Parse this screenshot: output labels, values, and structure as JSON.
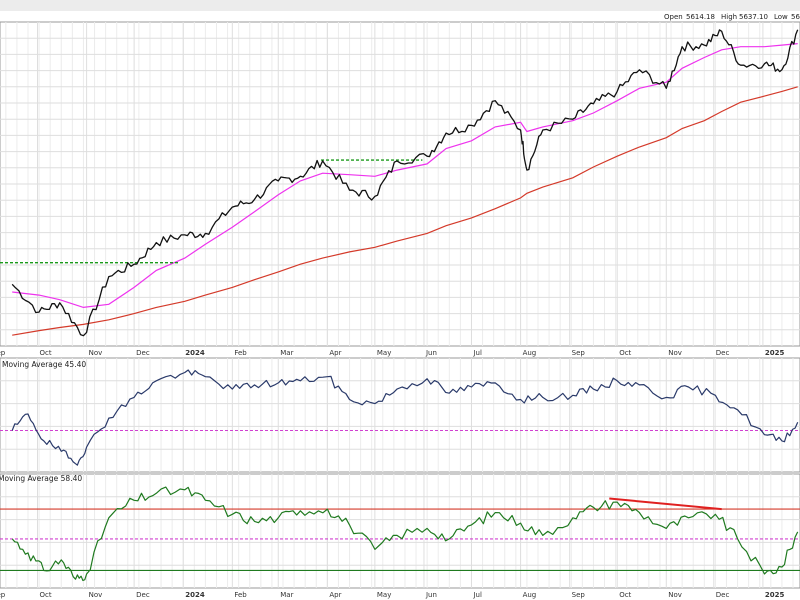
{
  "header": {
    "open_label": "Open",
    "open_value": "5614.18",
    "high_label": "High",
    "high_value": "5637.10",
    "low_label": "Low",
    "low_value": "56"
  },
  "colors": {
    "price": "#111111",
    "ma50": "#ee33ee",
    "ma200": "#d43a2a",
    "resistance": "#1a9a1a",
    "oscillator1": "#2a3a6a",
    "oscillator2": "#1f7a1f",
    "threshold_dash": "#d040d0",
    "divergence": "#e02020",
    "panel_border": "#999999",
    "grid": "#dedede"
  },
  "x_axis": {
    "labels": [
      "Sep",
      "Oct",
      "Nov",
      "Dec",
      "2024",
      "Feb",
      "Mar",
      "Apr",
      "May",
      "Jun",
      "Jul",
      "Aug",
      "Sep",
      "Oct",
      "Nov",
      "Dec",
      "2025"
    ],
    "bold": [
      "2024",
      "2025"
    ]
  },
  "panels": {
    "oscillator1_title": "Moving Average 45.40",
    "oscillator2_title": "Moving Average 58.40"
  },
  "chart_data": [
    {
      "type": "line",
      "name": "price",
      "x": [
        "2023-09-15",
        "2023-10-02",
        "2023-10-15",
        "2023-10-30",
        "2023-11-15",
        "2023-12-01",
        "2023-12-15",
        "2024-01-02",
        "2024-01-15",
        "2024-02-01",
        "2024-02-15",
        "2024-03-01",
        "2024-03-15",
        "2024-03-29",
        "2024-04-15",
        "2024-05-01",
        "2024-05-15",
        "2024-06-03",
        "2024-06-15",
        "2024-07-01",
        "2024-07-16",
        "2024-08-01",
        "2024-08-05",
        "2024-08-15",
        "2024-09-03",
        "2024-09-16",
        "2024-10-01",
        "2024-10-15",
        "2024-11-01",
        "2024-11-11",
        "2024-11-25",
        "2024-12-06",
        "2024-12-18",
        "2025-01-02",
        "2025-01-13",
        "2025-01-23"
      ],
      "series": [
        {
          "values": [
            4450,
            4270,
            4330,
            4117,
            4500,
            4580,
            4720,
            4770,
            4780,
            4950,
            5000,
            5120,
            5150,
            5250,
            5060,
            5020,
            5250,
            5280,
            5430,
            5480,
            5640,
            5450,
            5190,
            5450,
            5520,
            5620,
            5700,
            5840,
            5720,
            5990,
            6000,
            6090,
            5870,
            5880,
            5840,
            6100
          ]
        },
        {
          "name": "",
          "values": [
            4400,
            4380,
            4350,
            4300,
            4320,
            4430,
            4540,
            4620,
            4710,
            4820,
            4920,
            5030,
            5120,
            5170,
            5160,
            5150,
            5190,
            5230,
            5330,
            5380,
            5470,
            5500,
            5440,
            5470,
            5510,
            5560,
            5640,
            5720,
            5760,
            5850,
            5920,
            5970,
            5990,
            5990,
            6000,
            6010
          ]
        },
        {
          "name": "",
          "values": [
            4120,
            4150,
            4170,
            4190,
            4220,
            4260,
            4300,
            4340,
            4380,
            4430,
            4480,
            4530,
            4580,
            4620,
            4660,
            4690,
            4730,
            4780,
            4830,
            4880,
            4940,
            5010,
            5040,
            5080,
            5140,
            5210,
            5280,
            5340,
            5400,
            5460,
            5510,
            5570,
            5630,
            5670,
            5700,
            5730
          ]
        }
      ],
      "resistance_levels": [
        {
          "value": 4590,
          "from": "2023-09-01",
          "to": "2023-12-29"
        },
        {
          "value": 5255,
          "from": "2024-03-28",
          "to": "2024-05-31"
        }
      ],
      "ylim": [
        4050,
        6150
      ]
    },
    {
      "type": "line",
      "name": "oscillator1",
      "title": "Moving Average 45.40",
      "x": [
        "2023-09-15",
        "2023-09-25",
        "2023-10-05",
        "2023-10-16",
        "2023-10-25",
        "2023-11-01",
        "2023-11-15",
        "2023-12-01",
        "2023-12-15",
        "2024-01-02",
        "2024-01-15",
        "2024-02-01",
        "2024-02-15",
        "2024-03-01",
        "2024-03-15",
        "2024-04-01",
        "2024-04-15",
        "2024-05-01",
        "2024-05-15",
        "2024-06-03",
        "2024-06-17",
        "2024-07-01",
        "2024-07-16",
        "2024-08-01",
        "2024-08-15",
        "2024-09-03",
        "2024-09-16",
        "2024-10-01",
        "2024-10-15",
        "2024-11-01",
        "2024-11-15",
        "2024-12-02",
        "2024-12-16",
        "2025-01-02",
        "2025-01-13",
        "2025-01-23"
      ],
      "values": [
        50,
        58,
        45,
        40,
        34,
        42,
        56,
        66,
        74,
        78,
        76,
        70,
        72,
        73,
        74,
        76,
        65,
        63,
        70,
        75,
        68,
        71,
        73,
        65,
        66,
        67,
        70,
        74,
        72,
        66,
        71,
        67,
        60,
        48,
        45,
        54
      ],
      "threshold": 50,
      "ylim": [
        30,
        85
      ]
    },
    {
      "type": "line",
      "name": "oscillator2",
      "title": "Moving Average 58.40",
      "x": [
        "2023-09-15",
        "2023-09-25",
        "2023-10-05",
        "2023-10-16",
        "2023-10-25",
        "2023-11-01",
        "2023-11-15",
        "2023-12-01",
        "2023-12-15",
        "2024-01-02",
        "2024-01-15",
        "2024-02-01",
        "2024-02-15",
        "2024-03-01",
        "2024-03-15",
        "2024-04-01",
        "2024-04-15",
        "2024-05-01",
        "2024-05-15",
        "2024-06-03",
        "2024-06-17",
        "2024-07-01",
        "2024-07-16",
        "2024-08-01",
        "2024-08-15",
        "2024-09-03",
        "2024-09-16",
        "2024-10-01",
        "2024-10-15",
        "2024-11-01",
        "2024-11-15",
        "2024-12-02",
        "2024-12-16",
        "2025-01-02",
        "2025-01-13",
        "2025-01-23"
      ],
      "values": [
        58,
        50,
        40,
        46,
        35,
        38,
        70,
        80,
        84,
        86,
        80,
        72,
        68,
        70,
        74,
        75,
        66,
        52,
        60,
        64,
        58,
        66,
        73,
        67,
        60,
        70,
        76,
        79,
        73,
        64,
        70,
        72,
        58,
        38,
        42,
        62
      ],
      "thresholds": [
        {
          "value": 75,
          "color": "#d43a2a"
        },
        {
          "value": 58,
          "color": "#d040d0",
          "dashed": true
        },
        {
          "value": 40,
          "color": "#1f7a1f"
        }
      ],
      "divergence": {
        "from": {
          "x": "2024-09-26",
          "y": 81
        },
        "to": {
          "x": "2024-12-06",
          "y": 75
        }
      },
      "ylim": [
        30,
        95
      ]
    }
  ]
}
